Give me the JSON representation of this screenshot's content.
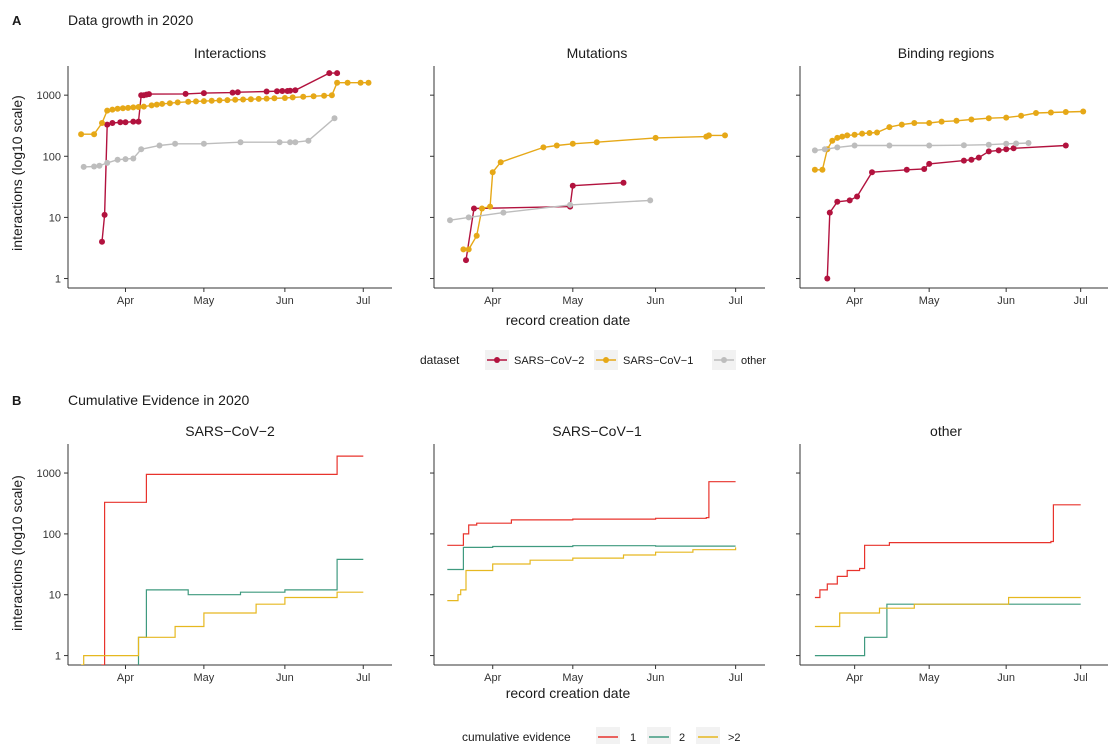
{
  "sections": [
    {
      "letter": "A",
      "title": "Data growth in 2020"
    },
    {
      "letter": "B",
      "title": "Cumulative Evidence in 2020"
    }
  ],
  "x_axis_label": "record creation date",
  "y_axis_label": "interactions (log10 scale)",
  "colors": {
    "SARS-CoV-2": "#b2123e",
    "SARS-CoV-1": "#e6a817",
    "other": "#bdbdbd",
    "ev1": "#e8332c",
    "ev2": "#3f9a7f",
    "ev3": "#e6b820"
  },
  "legends": {
    "A": {
      "title": "dataset",
      "items": [
        {
          "label": "SARS−CoV−2",
          "color_key": "SARS-CoV-2"
        },
        {
          "label": "SARS−CoV−1",
          "color_key": "SARS-CoV-1"
        },
        {
          "label": "other",
          "color_key": "other"
        }
      ]
    },
    "B": {
      "title": "cumulative evidence",
      "items": [
        {
          "label": "1",
          "color_key": "ev1"
        },
        {
          "label": "2",
          "color_key": "ev2"
        },
        {
          "label": ">2",
          "color_key": "ev3"
        }
      ]
    }
  },
  "chart_data": [
    {
      "type": "line",
      "section": "A",
      "title": "Interactions",
      "markers": true,
      "y_scale": "log10",
      "ylim": [
        0.7,
        3000
      ],
      "y_ticks": [
        1,
        10,
        100,
        1000
      ],
      "y_tick_labels": [
        "1",
        "10",
        "100",
        "1000"
      ],
      "xlim": [
        "2020-03-10",
        "2020-07-12"
      ],
      "x_ticks": [
        "2020-04-01",
        "2020-05-01",
        "2020-06-01",
        "2020-07-01"
      ],
      "x_tick_labels": [
        "Apr",
        "May",
        "Jun",
        "Jul"
      ],
      "series": [
        {
          "name": "SARS−CoV−2",
          "color_key": "SARS-CoV-2",
          "x": [
            "2020-03-23",
            "2020-03-24",
            "2020-03-25",
            "2020-03-27",
            "2020-03-30",
            "2020-04-01",
            "2020-04-04",
            "2020-04-06",
            "2020-04-07",
            "2020-04-08",
            "2020-04-09",
            "2020-04-10",
            "2020-04-24",
            "2020-05-01",
            "2020-05-12",
            "2020-05-14",
            "2020-05-25",
            "2020-05-29",
            "2020-05-31",
            "2020-06-02",
            "2020-06-03",
            "2020-06-05",
            "2020-06-18",
            "2020-06-21"
          ],
          "y": [
            4,
            11,
            330,
            350,
            360,
            360,
            370,
            370,
            1000,
            1000,
            1020,
            1040,
            1050,
            1080,
            1100,
            1120,
            1150,
            1160,
            1170,
            1170,
            1180,
            1200,
            2300,
            2300
          ]
        },
        {
          "name": "SARS−CoV−1",
          "color_key": "SARS-CoV-1",
          "x": [
            "2020-03-15",
            "2020-03-20",
            "2020-03-23",
            "2020-03-25",
            "2020-03-27",
            "2020-03-29",
            "2020-03-31",
            "2020-04-02",
            "2020-04-04",
            "2020-04-06",
            "2020-04-08",
            "2020-04-11",
            "2020-04-13",
            "2020-04-15",
            "2020-04-18",
            "2020-04-21",
            "2020-04-25",
            "2020-04-28",
            "2020-05-01",
            "2020-05-04",
            "2020-05-07",
            "2020-05-10",
            "2020-05-13",
            "2020-05-16",
            "2020-05-19",
            "2020-05-22",
            "2020-05-25",
            "2020-05-28",
            "2020-06-01",
            "2020-06-04",
            "2020-06-08",
            "2020-06-12",
            "2020-06-16",
            "2020-06-19",
            "2020-06-21",
            "2020-06-25",
            "2020-06-30",
            "2020-07-03"
          ],
          "y": [
            230,
            230,
            350,
            560,
            580,
            600,
            610,
            620,
            630,
            640,
            650,
            680,
            700,
            720,
            740,
            760,
            780,
            790,
            800,
            810,
            820,
            830,
            840,
            850,
            860,
            870,
            880,
            890,
            900,
            920,
            940,
            960,
            980,
            1000,
            1600,
            1600,
            1600,
            1600
          ]
        },
        {
          "name": "other",
          "color_key": "other",
          "x": [
            "2020-03-16",
            "2020-03-20",
            "2020-03-22",
            "2020-03-25",
            "2020-03-29",
            "2020-04-01",
            "2020-04-04",
            "2020-04-07",
            "2020-04-14",
            "2020-04-20",
            "2020-05-01",
            "2020-05-15",
            "2020-05-30",
            "2020-06-03",
            "2020-06-05",
            "2020-06-10",
            "2020-06-20"
          ],
          "y": [
            67,
            68,
            70,
            78,
            88,
            90,
            92,
            130,
            150,
            160,
            160,
            170,
            170,
            170,
            170,
            180,
            420
          ]
        }
      ]
    },
    {
      "type": "line",
      "section": "A",
      "title": "Mutations",
      "markers": true,
      "y_scale": "log10",
      "ylim": [
        0.7,
        3000
      ],
      "y_ticks": [
        1,
        10,
        100,
        1000
      ],
      "xlim": [
        "2020-03-10",
        "2020-07-12"
      ],
      "x_ticks": [
        "2020-04-01",
        "2020-05-01",
        "2020-06-01",
        "2020-07-01"
      ],
      "x_tick_labels": [
        "Apr",
        "May",
        "Jun",
        "Jul"
      ],
      "series": [
        {
          "name": "SARS−CoV−2",
          "color_key": "SARS-CoV-2",
          "x": [
            "2020-03-22",
            "2020-03-25",
            "2020-04-30",
            "2020-05-01",
            "2020-05-20"
          ],
          "y": [
            2,
            14,
            15,
            33,
            37
          ]
        },
        {
          "name": "SARS−CoV−1",
          "color_key": "SARS-CoV-1",
          "x": [
            "2020-03-21",
            "2020-03-23",
            "2020-03-26",
            "2020-03-28",
            "2020-03-31",
            "2020-04-01",
            "2020-04-04",
            "2020-04-20",
            "2020-04-25",
            "2020-05-01",
            "2020-05-10",
            "2020-06-01",
            "2020-06-20",
            "2020-06-21",
            "2020-06-27"
          ],
          "y": [
            3,
            3,
            5,
            14,
            15,
            55,
            80,
            140,
            150,
            160,
            170,
            200,
            210,
            220,
            220
          ]
        },
        {
          "name": "other",
          "color_key": "other",
          "x": [
            "2020-03-16",
            "2020-03-23",
            "2020-04-05",
            "2020-04-30",
            "2020-05-30"
          ],
          "y": [
            9,
            10,
            12,
            16,
            19
          ]
        }
      ]
    },
    {
      "type": "line",
      "section": "A",
      "title": "Binding regions",
      "markers": true,
      "y_scale": "log10",
      "ylim": [
        0.7,
        3000
      ],
      "y_ticks": [
        1,
        10,
        100,
        1000
      ],
      "xlim": [
        "2020-03-10",
        "2020-07-12"
      ],
      "x_ticks": [
        "2020-04-01",
        "2020-05-01",
        "2020-06-01",
        "2020-07-01"
      ],
      "x_tick_labels": [
        "Apr",
        "May",
        "Jun",
        "Jul"
      ],
      "series": [
        {
          "name": "SARS−CoV−2",
          "color_key": "SARS-CoV-2",
          "x": [
            "2020-03-21",
            "2020-03-22",
            "2020-03-25",
            "2020-03-30",
            "2020-04-02",
            "2020-04-08",
            "2020-04-22",
            "2020-04-29",
            "2020-05-01",
            "2020-05-15",
            "2020-05-18",
            "2020-05-21",
            "2020-05-25",
            "2020-05-29",
            "2020-06-01",
            "2020-06-04",
            "2020-06-25"
          ],
          "y": [
            1,
            12,
            18,
            19,
            22,
            55,
            60,
            62,
            75,
            85,
            88,
            95,
            120,
            125,
            130,
            135,
            150
          ]
        },
        {
          "name": "SARS−CoV−1",
          "color_key": "SARS-CoV-1",
          "x": [
            "2020-03-16",
            "2020-03-19",
            "2020-03-21",
            "2020-03-23",
            "2020-03-25",
            "2020-03-27",
            "2020-03-29",
            "2020-04-01",
            "2020-04-04",
            "2020-04-07",
            "2020-04-10",
            "2020-04-15",
            "2020-04-20",
            "2020-04-25",
            "2020-05-01",
            "2020-05-06",
            "2020-05-12",
            "2020-05-18",
            "2020-05-25",
            "2020-06-01",
            "2020-06-07",
            "2020-06-13",
            "2020-06-19",
            "2020-06-25",
            "2020-07-02"
          ],
          "y": [
            60,
            60,
            130,
            180,
            200,
            210,
            220,
            225,
            235,
            240,
            245,
            300,
            330,
            350,
            350,
            370,
            380,
            400,
            420,
            430,
            460,
            510,
            520,
            530,
            540
          ]
        },
        {
          "name": "other",
          "color_key": "other",
          "x": [
            "2020-03-16",
            "2020-03-20",
            "2020-03-25",
            "2020-04-01",
            "2020-04-15",
            "2020-05-01",
            "2020-05-15",
            "2020-05-25",
            "2020-06-01",
            "2020-06-05",
            "2020-06-10"
          ],
          "y": [
            125,
            130,
            140,
            150,
            150,
            150,
            152,
            155,
            160,
            162,
            165
          ]
        }
      ]
    },
    {
      "type": "line",
      "section": "B",
      "title": "SARS−CoV−2",
      "y_scale": "log10",
      "ylim": [
        0.7,
        3000
      ],
      "y_ticks": [
        1,
        10,
        100,
        1000
      ],
      "y_tick_labels": [
        "1",
        "10",
        "100",
        "1000"
      ],
      "xlim": [
        "2020-03-10",
        "2020-07-12"
      ],
      "x_ticks": [
        "2020-04-01",
        "2020-05-01",
        "2020-06-01",
        "2020-07-01"
      ],
      "x_tick_labels": [
        "Apr",
        "May",
        "Jun",
        "Jul"
      ],
      "series": [
        {
          "name": "1",
          "color_key": "ev1",
          "x": [
            "2020-03-22",
            "2020-03-23",
            "2020-03-24",
            "2020-04-08",
            "2020-04-09",
            "2020-06-20",
            "2020-06-21",
            "2020-07-01"
          ],
          "y": [
            0.6,
            0.7,
            330,
            330,
            950,
            950,
            1900,
            1900
          ]
        },
        {
          "name": "2",
          "color_key": "ev2",
          "x": [
            "2020-03-24",
            "2020-04-05",
            "2020-04-06",
            "2020-04-09",
            "2020-04-25",
            "2020-05-15",
            "2020-06-01",
            "2020-06-20",
            "2020-06-21",
            "2020-07-01"
          ],
          "y": [
            0.6,
            0.6,
            2,
            12,
            10,
            11,
            12,
            12,
            38,
            38
          ]
        },
        {
          "name": ">2",
          "color_key": "ev3",
          "x": [
            "2020-03-15",
            "2020-03-16",
            "2020-04-05",
            "2020-04-06",
            "2020-04-15",
            "2020-04-20",
            "2020-05-01",
            "2020-05-16",
            "2020-05-21",
            "2020-06-01",
            "2020-06-20",
            "2020-06-21",
            "2020-07-01"
          ],
          "y": [
            0.7,
            1,
            1,
            2,
            2,
            3,
            5,
            5,
            7,
            9,
            9,
            11,
            11
          ]
        }
      ]
    },
    {
      "type": "line",
      "section": "B",
      "title": "SARS−CoV−1",
      "y_scale": "log10",
      "ylim": [
        0.7,
        3000
      ],
      "y_ticks": [
        1,
        10,
        100,
        1000
      ],
      "xlim": [
        "2020-03-10",
        "2020-07-12"
      ],
      "x_ticks": [
        "2020-04-01",
        "2020-05-01",
        "2020-06-01",
        "2020-07-01"
      ],
      "x_tick_labels": [
        "Apr",
        "May",
        "Jun",
        "Jul"
      ],
      "series": [
        {
          "name": "1",
          "color_key": "ev1",
          "x": [
            "2020-03-15",
            "2020-03-19",
            "2020-03-21",
            "2020-03-23",
            "2020-03-26",
            "2020-04-08",
            "2020-05-01",
            "2020-06-01",
            "2020-06-20",
            "2020-06-21",
            "2020-07-01"
          ],
          "y": [
            65,
            65,
            100,
            140,
            150,
            170,
            175,
            180,
            185,
            720,
            720
          ]
        },
        {
          "name": "2",
          "color_key": "ev2",
          "x": [
            "2020-03-15",
            "2020-03-19",
            "2020-03-21",
            "2020-04-01",
            "2020-05-01",
            "2020-06-01",
            "2020-07-01"
          ],
          "y": [
            26,
            26,
            60,
            62,
            64,
            63,
            63
          ]
        },
        {
          "name": ">2",
          "color_key": "ev3",
          "x": [
            "2020-03-15",
            "2020-03-19",
            "2020-03-20",
            "2020-03-22",
            "2020-04-01",
            "2020-04-15",
            "2020-05-01",
            "2020-05-20",
            "2020-06-01",
            "2020-06-15",
            "2020-07-01"
          ],
          "y": [
            8,
            10,
            12,
            25,
            32,
            37,
            40,
            45,
            50,
            55,
            60
          ]
        }
      ]
    },
    {
      "type": "line",
      "section": "B",
      "title": "other",
      "y_scale": "log10",
      "ylim": [
        0.7,
        3000
      ],
      "y_ticks": [
        1,
        10,
        100,
        1000
      ],
      "xlim": [
        "2020-03-10",
        "2020-07-12"
      ],
      "x_ticks": [
        "2020-04-01",
        "2020-05-01",
        "2020-06-01",
        "2020-07-01"
      ],
      "x_tick_labels": [
        "Apr",
        "May",
        "Jun",
        "Jul"
      ],
      "series": [
        {
          "name": "1",
          "color_key": "ev1",
          "x": [
            "2020-03-16",
            "2020-03-18",
            "2020-03-21",
            "2020-03-25",
            "2020-03-29",
            "2020-04-03",
            "2020-04-05",
            "2020-04-15",
            "2020-05-01",
            "2020-05-15",
            "2020-06-01",
            "2020-06-19",
            "2020-06-20",
            "2020-07-01"
          ],
          "y": [
            9,
            12,
            15,
            20,
            25,
            27,
            65,
            72,
            72,
            72,
            72,
            75,
            300,
            300
          ]
        },
        {
          "name": "2",
          "color_key": "ev2",
          "x": [
            "2020-03-16",
            "2020-04-04",
            "2020-04-05",
            "2020-04-13",
            "2020-04-14",
            "2020-05-01",
            "2020-06-01",
            "2020-07-01"
          ],
          "y": [
            1,
            1,
            2,
            2,
            7,
            7,
            7,
            7
          ]
        },
        {
          "name": ">2",
          "color_key": "ev3",
          "x": [
            "2020-03-16",
            "2020-03-25",
            "2020-03-26",
            "2020-04-10",
            "2020-04-11",
            "2020-04-25",
            "2020-05-01",
            "2020-06-01",
            "2020-06-02",
            "2020-07-01"
          ],
          "y": [
            3,
            3,
            5,
            5,
            6,
            7,
            7,
            7,
            9,
            9
          ]
        }
      ]
    }
  ]
}
